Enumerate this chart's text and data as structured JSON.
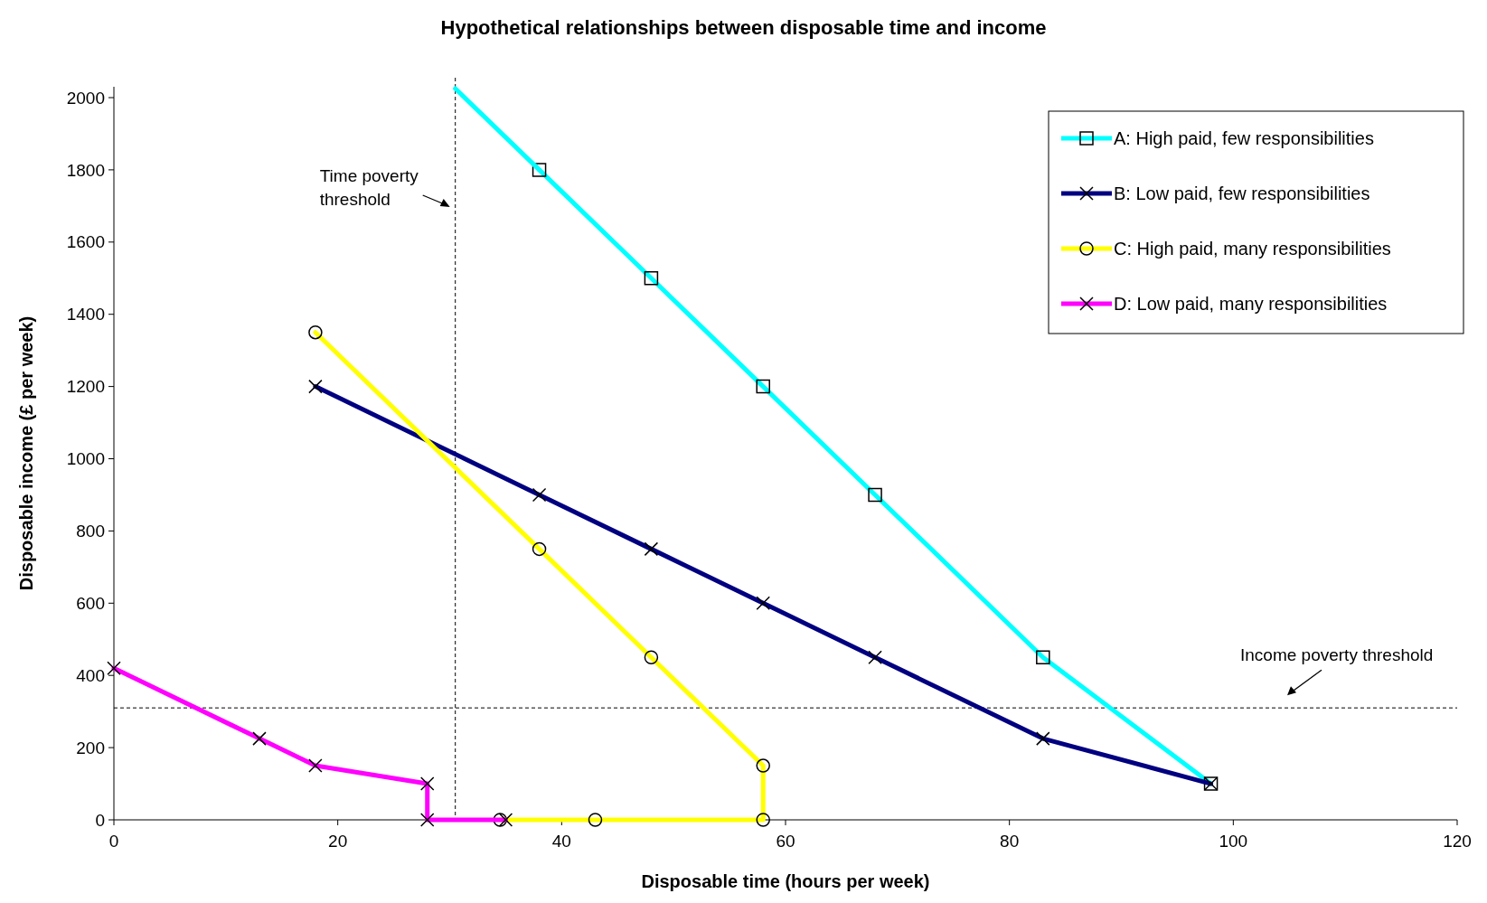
{
  "chart_data": {
    "type": "line",
    "title": "Hypothetical relationships between disposable time and income",
    "xlabel": "Disposable time (hours per week)",
    "ylabel": "Disposable income (£ per week)",
    "xlim": [
      0,
      120
    ],
    "xticks": [
      0,
      20,
      40,
      60,
      80,
      100,
      120
    ],
    "ylim": [
      0,
      2030
    ],
    "yticks": [
      0,
      200,
      400,
      600,
      800,
      1000,
      1200,
      1400,
      1600,
      1800,
      2000
    ],
    "grid": false,
    "legend": "top right",
    "line_style": "solid",
    "series": [
      {
        "name": "A: High paid, few responsibilities",
        "color": "#00ffff",
        "marker": "square",
        "x": [
          38,
          48,
          58,
          68,
          83,
          98
        ],
        "values": [
          1800,
          1500,
          1200,
          900,
          450,
          100
        ]
      },
      {
        "name": "B: Low paid, few responsibilities",
        "color": "#000080",
        "marker": "cross",
        "x": [
          18,
          38,
          48,
          58,
          68,
          83,
          98
        ],
        "values": [
          1200,
          900,
          750,
          600,
          450,
          225,
          100
        ]
      },
      {
        "name": "C: High paid, many responsibilities",
        "color": "#ffff00",
        "marker": "circle",
        "x": [
          18,
          38,
          48,
          58,
          58,
          43,
          34.5
        ],
        "values": [
          1350,
          750,
          450,
          150,
          0,
          0,
          0
        ]
      },
      {
        "name": "D: Low paid, many responsibilities",
        "color": "#ff00ff",
        "marker": "cross",
        "x": [
          0,
          13,
          18,
          28,
          28,
          35
        ],
        "values": [
          420,
          225,
          150,
          100,
          0,
          0
        ]
      },
      {
        "color": "#00ffff",
        "marker": "none",
        "x": [
          30.5,
          38
        ],
        "values": [
          2025,
          1800
        ]
      }
    ],
    "ref_lines": [
      {
        "axis": "x",
        "value": 30.5,
        "label": "Time poverty threshold",
        "line_style": "dashed"
      },
      {
        "axis": "y",
        "value": 310,
        "label": "Income poverty threshold",
        "line_style": "dashed"
      }
    ]
  }
}
